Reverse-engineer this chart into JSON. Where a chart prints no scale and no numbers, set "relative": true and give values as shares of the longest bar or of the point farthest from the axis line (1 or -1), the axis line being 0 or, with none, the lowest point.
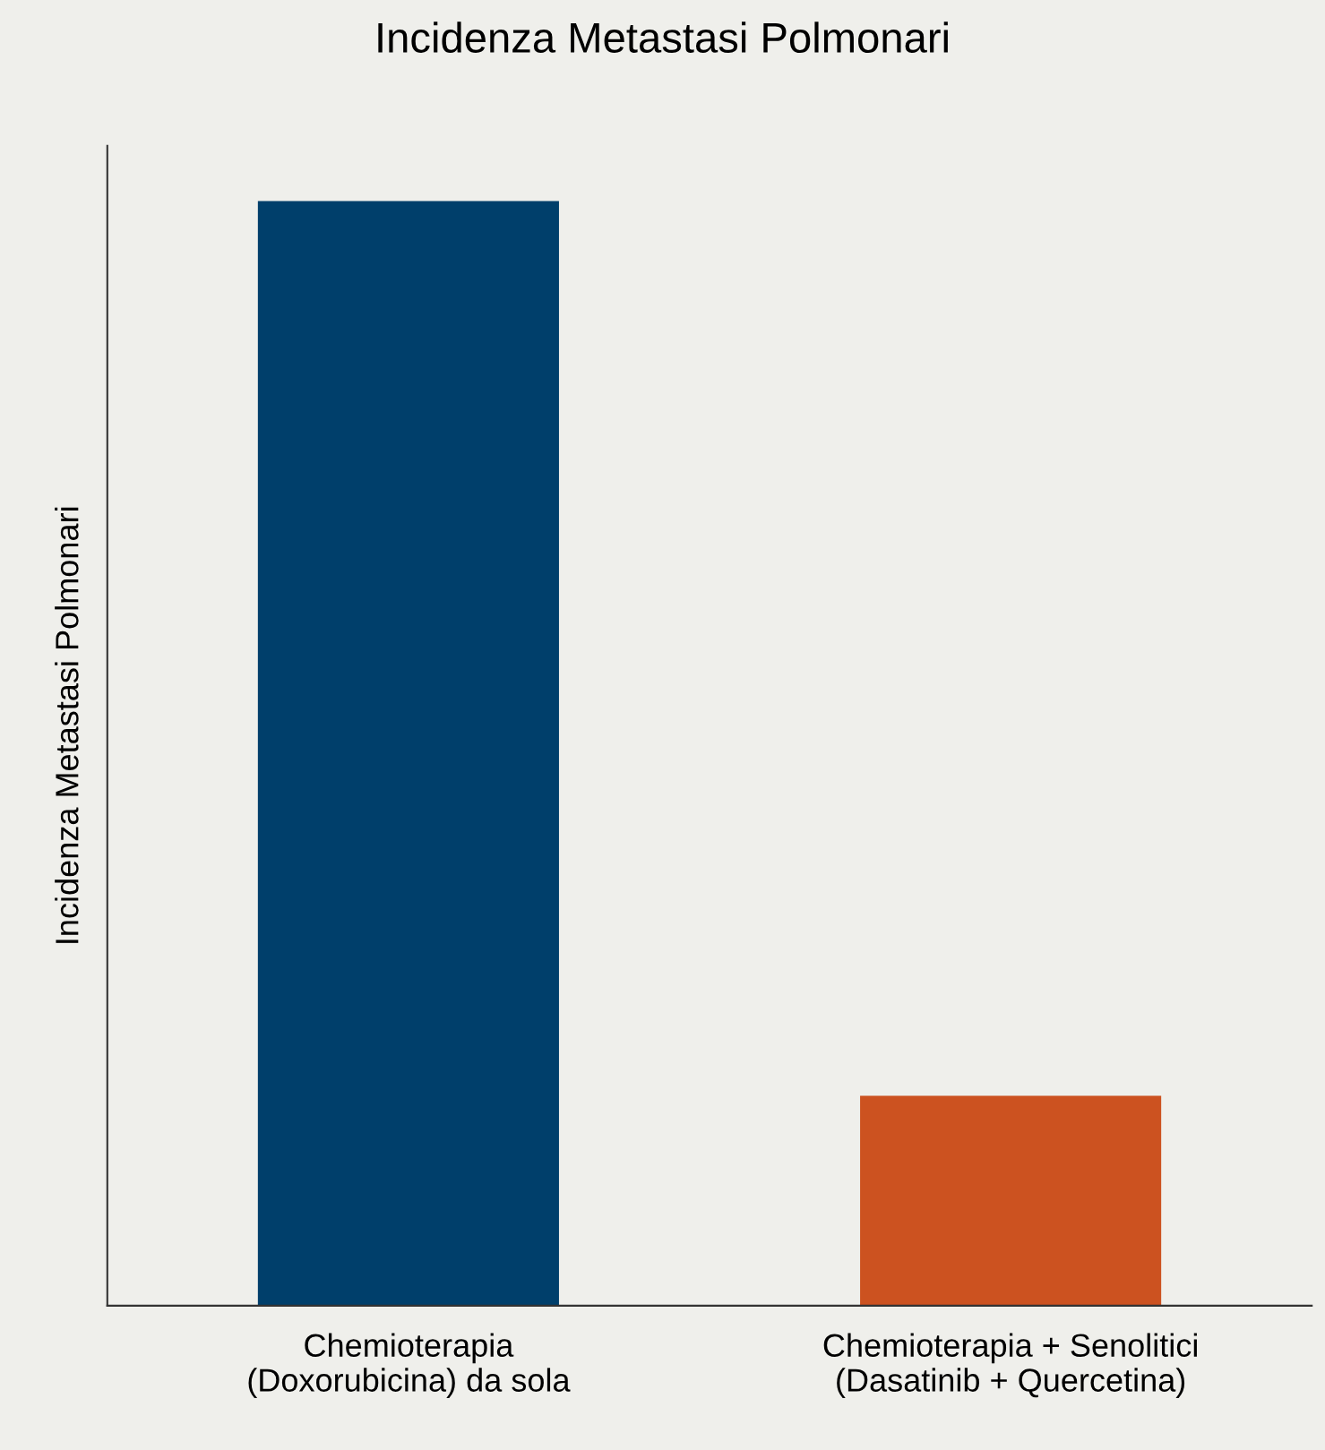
{
  "chart_data": {
    "type": "bar",
    "title": "Incidenza Metastasi Polmonari",
    "ylabel": "Incidenza Metastasi Polmonari",
    "categories": [
      "Chemioterapia\n(Doxorubicina) da sola",
      "Chemioterapia + Senolitici\n(Dasatinib + Quercetina)"
    ],
    "values": [
      1,
      0.19
    ],
    "colors": [
      "#003f6b",
      "#cc5220"
    ],
    "relative": true,
    "grid": false,
    "legend": false
  }
}
